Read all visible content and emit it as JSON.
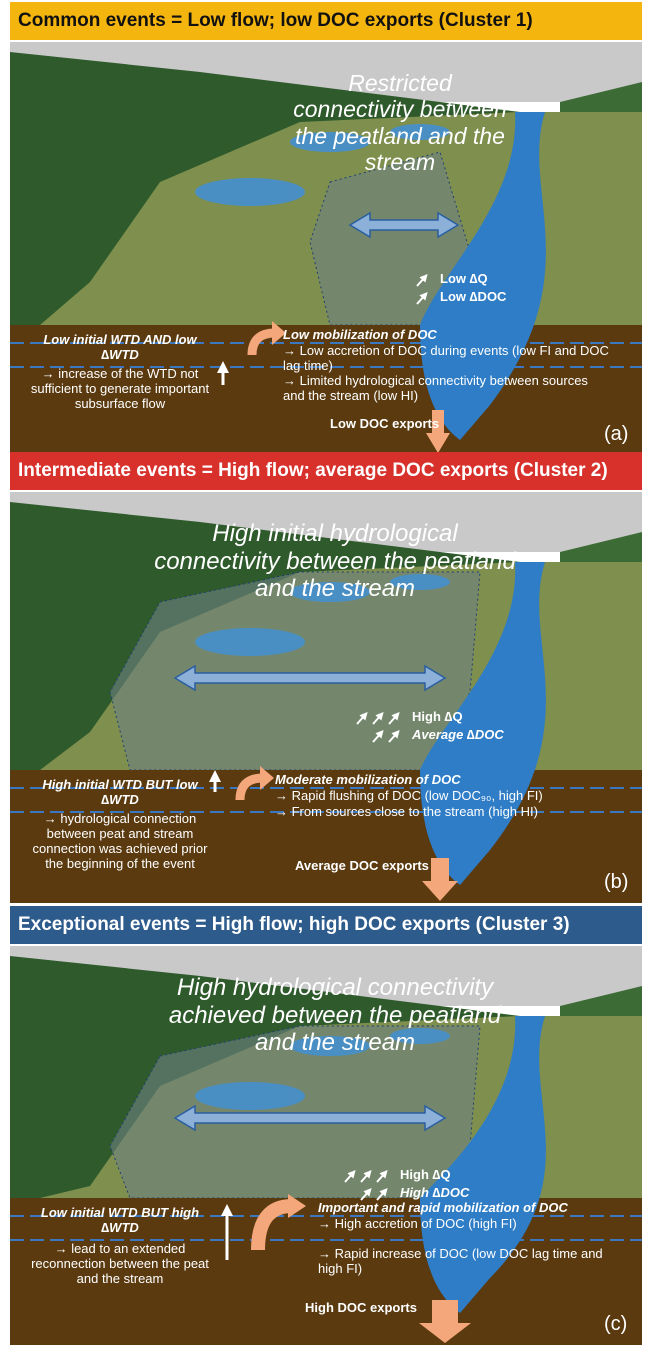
{
  "panels": [
    {
      "header": "Common events = Low flow; low DOC exports (Cluster 1)",
      "connectivity": "Restricted connectivity between the peatland and the stream",
      "flow": [
        "Low ∆Q",
        "Low ∆DOC"
      ],
      "wtd_title": "Low initial WTD AND low ∆WTD",
      "wtd_desc": "→ increase of the WTD not sufficient to generate important subsurface flow",
      "mobilization_title": "Low mobilization of DOC",
      "bullets": [
        "→ Low accretion of  DOC during events (low FI and DOC lag time)",
        "→ Limited hydrological connectivity between sources and the stream (low HI)"
      ],
      "exports": "Low DOC exports",
      "label": "(a)"
    },
    {
      "header": "Intermediate events = High flow; average DOC exports (Cluster 2)",
      "connectivity": "High initial hydrological connectivity between the peatland and the stream",
      "flow": [
        "High ∆Q",
        "Average ∆DOC"
      ],
      "wtd_title": "High initial WTD BUT low ∆WTD",
      "wtd_desc": "→ hydrological connection between peat and stream connection was achieved prior the beginning of the event",
      "mobilization_title": "Moderate mobilization of DOC",
      "bullets": [
        "→ Rapid flushing of DOC (low DOC₉₀, high FI)",
        "→ From sources close to the stream (high HI)"
      ],
      "exports": "Average DOC exports",
      "label": "(b)"
    },
    {
      "header": "Exceptional events = High flow; high DOC exports (Cluster 3)",
      "connectivity": "High hydrological connectivity achieved between the peatland and the stream",
      "flow": [
        "High ∆Q",
        "High ∆DOC"
      ],
      "wtd_title": "Low initial WTD BUT high ∆WTD",
      "wtd_desc": "→ lead to an extended reconnection between the peat and the stream",
      "mobilization_title": "Important and rapid mobilization of DOC",
      "bullets": [
        "→ High accretion of DOC (high FI)",
        "→ Rapid increase of DOC (low DOC lag time and high FI)"
      ],
      "exports": "High DOC exports",
      "label": "(c)"
    }
  ]
}
